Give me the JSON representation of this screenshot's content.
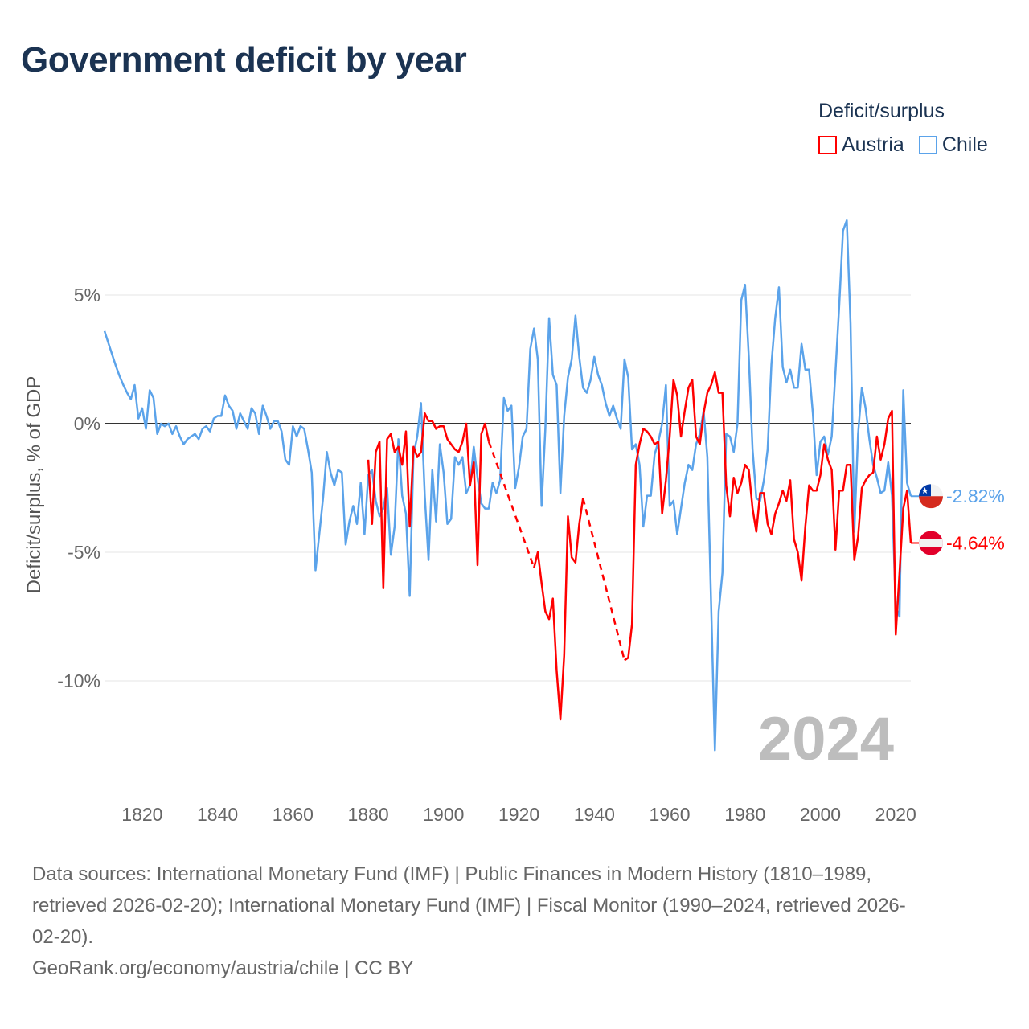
{
  "title": "Government deficit by year",
  "legend": {
    "title": "Deficit/surplus",
    "items": [
      {
        "label": "Austria",
        "color": "#ff0000"
      },
      {
        "label": "Chile",
        "color": "#5ba3ea"
      }
    ]
  },
  "watermark_year": "2024",
  "footer": {
    "lines": [
      "Data sources: International Monetary Fund (IMF) | Public Finances in Modern History (1810–1989,",
      "retrieved 2026-02-20); International Monetary Fund (IMF) | Fiscal Monitor (1990–2024, retrieved 2026-",
      "02-20).",
      "GeoRank.org/economy/austria/chile | CC BY"
    ]
  },
  "chart_data": {
    "type": "line",
    "title": "Government deficit by year",
    "xlabel": "",
    "ylabel": "Deficit/surplus, % of GDP",
    "xlim": [
      1810,
      2024
    ],
    "ylim": [
      -13.5,
      8.5
    ],
    "x_ticks": [
      1820,
      1840,
      1860,
      1880,
      1900,
      1920,
      1940,
      1960,
      1980,
      2000,
      2020
    ],
    "x_tick_labels": [
      "1820",
      "1840",
      "1860",
      "1880",
      "1900",
      "1920",
      "1940",
      "1960",
      "1980",
      "2000",
      "2020"
    ],
    "y_ticks": [
      5,
      0,
      -5,
      -10
    ],
    "y_tick_labels": [
      "5%",
      "0%",
      "-5%",
      "-10%"
    ],
    "grid": true,
    "legend_position": "top-right",
    "series": [
      {
        "name": "Chile",
        "color": "#5ba3ea",
        "start_year": 1810,
        "end_label": "-2.82%",
        "values": [
          3.6,
          3.15,
          2.7,
          2.25,
          1.85,
          1.5,
          1.2,
          0.95,
          1.5,
          0.2,
          0.6,
          -0.2,
          1.3,
          1.0,
          -0.4,
          0.0,
          -0.1,
          0.0,
          -0.4,
          -0.1,
          -0.5,
          -0.8,
          -0.6,
          -0.5,
          -0.4,
          -0.6,
          -0.2,
          -0.1,
          -0.3,
          0.2,
          0.3,
          0.3,
          1.1,
          0.7,
          0.5,
          -0.2,
          0.4,
          0.1,
          -0.2,
          0.6,
          0.4,
          -0.4,
          0.7,
          0.3,
          -0.2,
          0.1,
          0.1,
          -0.3,
          -1.4,
          -1.6,
          -0.1,
          -0.5,
          -0.1,
          -0.2,
          -1.0,
          -1.9,
          -5.7,
          -4.3,
          -2.9,
          -1.1,
          -1.9,
          -2.4,
          -1.8,
          -1.9,
          -4.7,
          -3.8,
          -3.2,
          -3.9,
          -2.3,
          -4.3,
          -2.0,
          -1.8,
          -3.0,
          -3.6,
          -3.3,
          -2.5,
          -5.1,
          -4.0,
          -0.6,
          -2.8,
          -3.5,
          -6.7,
          -1.2,
          -0.5,
          0.8,
          -2.8,
          -5.3,
          -1.8,
          -3.8,
          -0.8,
          -1.9,
          -3.9,
          -3.7,
          -1.3,
          -1.6,
          -1.3,
          -2.7,
          -2.4,
          -0.9,
          -2.1,
          -3.1,
          -3.3,
          -3.3,
          -2.3,
          -2.7,
          -2.2,
          1.0,
          0.5,
          0.7,
          -2.5,
          -1.7,
          -0.5,
          -0.2,
          2.9,
          3.7,
          2.5,
          -3.2,
          -0.2,
          4.1,
          1.9,
          1.5,
          -2.7,
          0.3,
          1.8,
          2.5,
          4.2,
          2.6,
          1.4,
          1.2,
          1.7,
          2.6,
          1.9,
          1.5,
          0.8,
          0.3,
          0.7,
          0.2,
          -0.2,
          2.5,
          1.8,
          -1.0,
          -0.8,
          -1.6,
          -4.0,
          -2.8,
          -2.8,
          -1.2,
          -0.7,
          0.0,
          1.5,
          -3.2,
          -3.0,
          -4.3,
          -3.3,
          -2.3,
          -1.6,
          -1.8,
          -0.8,
          -0.4,
          0.5,
          -1.3,
          -7.0,
          -12.7,
          -7.3,
          -5.8,
          -0.4,
          -0.5,
          -1.1,
          0.0,
          4.8,
          5.4,
          2.6,
          -1.0,
          -2.9,
          -3.0,
          -2.2,
          -1.0,
          2.3,
          4.1,
          5.3,
          2.2,
          1.6,
          2.1,
          1.4,
          1.4,
          3.1,
          2.1,
          2.1,
          0.4,
          -2.0,
          -0.7,
          -0.5,
          -1.2,
          -0.5,
          2.0,
          4.6,
          7.5,
          7.9,
          3.9,
          -4.2,
          -0.4,
          1.4,
          0.6,
          -0.6,
          -1.6,
          -2.1,
          -2.7,
          -2.6,
          -1.5,
          -2.8,
          -7.1,
          -7.5,
          1.3,
          -2.3,
          -2.82
        ]
      },
      {
        "name": "Austria",
        "color": "#ff0000",
        "start_year": 1880,
        "end_label": "-4.64%",
        "values": [
          -1.4,
          -3.9,
          -1.1,
          -0.7,
          -6.4,
          -0.6,
          -0.4,
          -1.1,
          -0.9,
          -1.6,
          -0.3,
          -4.0,
          -0.9,
          -1.3,
          -1.1,
          0.4,
          0.1,
          0.1,
          -0.2,
          -0.1,
          -0.1,
          -0.6,
          -0.8,
          -1.0,
          -1.1,
          -0.7,
          0.0,
          -2.4,
          -1.5,
          -5.5,
          -0.4,
          0.0,
          -0.7,
          null,
          null,
          null,
          null,
          null,
          null,
          null,
          null,
          null,
          null,
          null,
          -5.6,
          -5.0,
          -6.2,
          -7.3,
          -7.6,
          -6.8,
          -9.6,
          -11.5,
          -9.0,
          -3.6,
          -5.2,
          -5.4,
          -3.9,
          -2.9,
          null,
          null,
          null,
          null,
          null,
          null,
          null,
          null,
          null,
          null,
          -9.2,
          -9.1,
          -7.8,
          -1.6,
          -0.8,
          -0.2,
          -0.3,
          -0.5,
          -0.8,
          -0.7,
          -3.5,
          -2.2,
          -0.5,
          1.7,
          1.1,
          -0.5,
          0.5,
          1.4,
          1.7,
          -0.5,
          -0.8,
          0.4,
          1.2,
          1.5,
          2.0,
          1.2,
          1.2,
          -2.4,
          -3.6,
          -2.1,
          -2.7,
          -2.3,
          -1.6,
          -1.8,
          -3.3,
          -4.2,
          -2.7,
          -2.7,
          -3.9,
          -4.3,
          -3.5,
          -3.1,
          -2.6,
          -3.0,
          -2.2,
          -4.5,
          -5.0,
          -6.1,
          -4.0,
          -2.4,
          -2.6,
          -2.6,
          -2.0,
          -0.8,
          -1.4,
          -1.8,
          -4.9,
          -2.6,
          -2.6,
          -1.6,
          -1.6,
          -5.3,
          -4.4,
          -2.5,
          -2.2,
          -2.0,
          -1.9,
          -0.5,
          -1.4,
          -0.8,
          0.2,
          0.5,
          -8.2,
          -5.8,
          -3.3,
          -2.6,
          -4.64
        ]
      }
    ]
  }
}
